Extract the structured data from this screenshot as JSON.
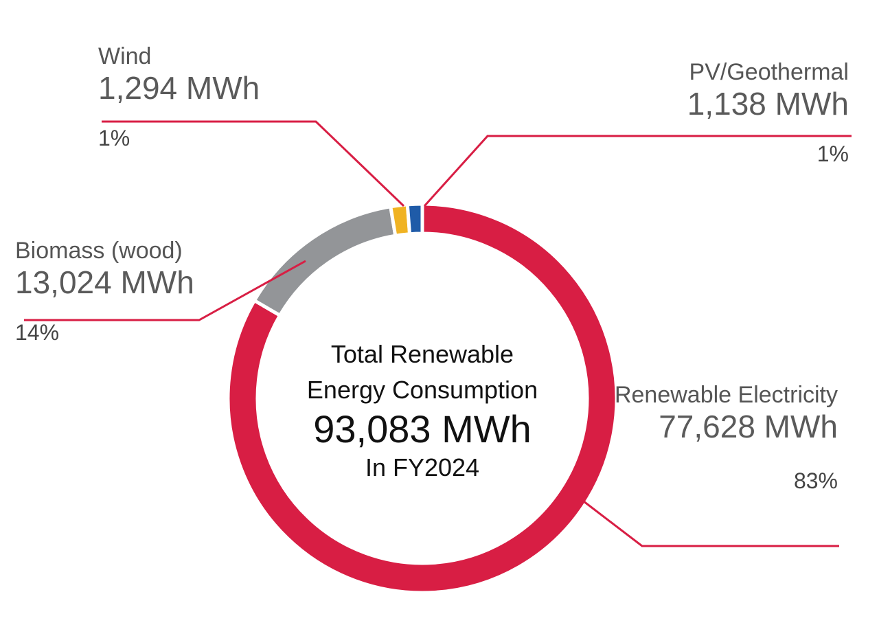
{
  "chart_data": {
    "type": "donut",
    "categories": [
      "Renewable Electricity",
      "Biomass (wood)",
      "Wind",
      "PV/Geothermal"
    ],
    "values": [
      77628,
      13024,
      1294,
      1138
    ],
    "value_labels": [
      "77,628 MWh",
      "13,024 MWh",
      "1,294 MWh",
      "1,138 MWh"
    ],
    "percent_labels": [
      "83%",
      "14%",
      "1%",
      "1%"
    ],
    "colors": [
      "#d81e44",
      "#939598",
      "#f0b323",
      "#1f5ba8"
    ],
    "center": {
      "title": "Total Renewable Energy Consumption",
      "total": "93,083 MWh",
      "period": "In FY2024"
    }
  }
}
